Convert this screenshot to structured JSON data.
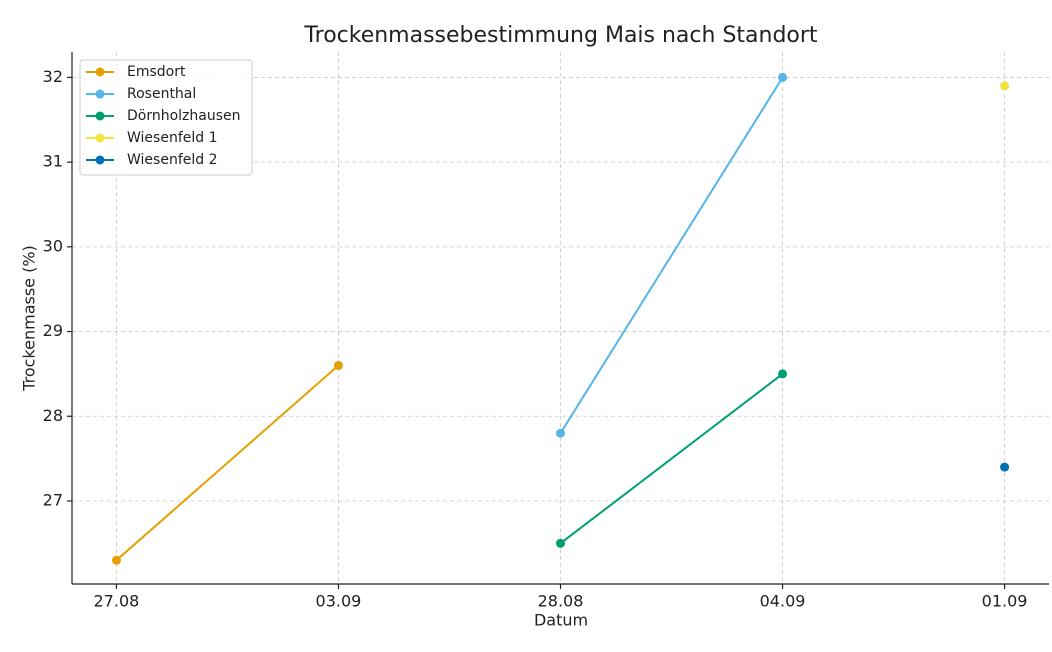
{
  "chart_data": {
    "type": "line",
    "title": "Trockenmassebestimmung Mais nach Standort",
    "x_label": "Datum",
    "y_label": "Trockenmasse (%)",
    "categories": [
      "27.08",
      "03.09",
      "28.08",
      "04.09",
      "01.09"
    ],
    "series": [
      {
        "name": "Emsdort",
        "color": "#E69F00",
        "values": [
          26.3,
          28.6,
          null,
          null,
          null
        ]
      },
      {
        "name": "Rosenthal",
        "color": "#56B4E9",
        "values": [
          null,
          null,
          27.8,
          32.0,
          null
        ]
      },
      {
        "name": "Dörnholzhausen",
        "color": "#009E73",
        "values": [
          null,
          null,
          26.5,
          28.5,
          null
        ]
      },
      {
        "name": "Wiesenfeld 1",
        "color": "#F0E442",
        "values": [
          null,
          null,
          null,
          null,
          31.9
        ]
      },
      {
        "name": "Wiesenfeld 2",
        "color": "#0072B2",
        "values": [
          null,
          null,
          null,
          null,
          27.4
        ]
      }
    ],
    "ylim": [
      26.02,
      32.3
    ],
    "yticks": [
      27,
      28,
      29,
      30,
      31,
      32
    ],
    "grid": true,
    "legend": "upper left"
  }
}
